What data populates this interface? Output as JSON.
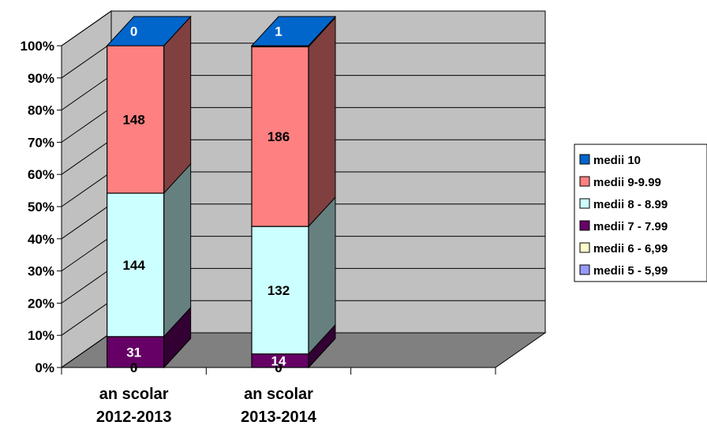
{
  "chart_data": {
    "type": "bar",
    "stacked": "percent",
    "three_d": true,
    "categories": [
      [
        "an scolar",
        "2012-2013"
      ],
      [
        "an scolar",
        "2013-2014"
      ]
    ],
    "series": [
      {
        "name": "medii 5 - 5,99",
        "values": [
          0,
          0
        ],
        "color": "#9999ff"
      },
      {
        "name": "medii 6 - 6,99",
        "values": [
          0,
          0
        ],
        "color": "#ffffcc"
      },
      {
        "name": "medii 7 - 7.99",
        "values": [
          31,
          14
        ],
        "color": "#660066"
      },
      {
        "name": "medii 8 - 8.99",
        "values": [
          144,
          132
        ],
        "color": "#ccffff"
      },
      {
        "name": "medii 9-9.99",
        "values": [
          148,
          186
        ],
        "color": "#ff8080"
      },
      {
        "name": "medii 10",
        "values": [
          0,
          1
        ],
        "color": "#0066cc"
      }
    ],
    "data_labels": [
      [
        "0",
        "0",
        "31",
        "144",
        "148",
        "0"
      ],
      [
        "0",
        "0",
        "14",
        "132",
        "186",
        "1"
      ]
    ],
    "y_ticks": [
      "0%",
      "10%",
      "20%",
      "30%",
      "40%",
      "50%",
      "60%",
      "70%",
      "80%",
      "90%",
      "100%"
    ],
    "ylim": [
      0,
      100
    ],
    "grid": true,
    "legend_position": "right",
    "wall_color": "#c0c0c0",
    "floor_color": "#808080"
  }
}
